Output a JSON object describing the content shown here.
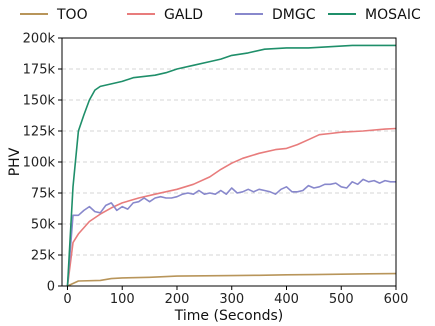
{
  "chart_data": {
    "type": "line",
    "title": "",
    "xlabel": "Time (Seconds)",
    "ylabel": "PHV",
    "xlim": [
      -10,
      600
    ],
    "ylim": [
      0,
      200000
    ],
    "xticks": [
      0,
      100,
      200,
      300,
      400,
      500,
      600
    ],
    "xtick_labels": [
      "0",
      "100",
      "200",
      "300",
      "400",
      "500",
      "600"
    ],
    "yticks": [
      0,
      25000,
      50000,
      75000,
      100000,
      125000,
      150000,
      175000,
      200000
    ],
    "ytick_labels": [
      "0",
      "25k",
      "50k",
      "75k",
      "100k",
      "125k",
      "150k",
      "175k",
      "200k"
    ],
    "grid": "horizontal dashed",
    "legend": "top",
    "series": [
      {
        "name": "TOO",
        "color": "#b8955a",
        "x": [
          0,
          20,
          60,
          80,
          100,
          150,
          200,
          250,
          300,
          350,
          400,
          450,
          500,
          550,
          600
        ],
        "y": [
          0,
          4000,
          4500,
          6000,
          6500,
          7000,
          8000,
          8200,
          8400,
          8600,
          9000,
          9200,
          9500,
          9800,
          10000
        ]
      },
      {
        "name": "GALD",
        "color": "#e87c7c",
        "x": [
          0,
          10,
          20,
          40,
          60,
          80,
          100,
          130,
          160,
          200,
          230,
          260,
          280,
          300,
          320,
          350,
          380,
          400,
          420,
          440,
          460,
          480,
          500,
          540,
          580,
          600
        ],
        "y": [
          0,
          35000,
          42000,
          52000,
          58000,
          63000,
          67000,
          71000,
          74000,
          78000,
          82000,
          88000,
          94000,
          99000,
          103000,
          107000,
          110000,
          111000,
          114000,
          118000,
          122000,
          123000,
          124000,
          125000,
          126500,
          127000
        ]
      },
      {
        "name": "DMGC",
        "color": "#8888cc",
        "x": [
          0,
          10,
          20,
          30,
          40,
          50,
          60,
          70,
          80,
          90,
          100,
          110,
          120,
          130,
          140,
          150,
          160,
          170,
          180,
          190,
          200,
          210,
          220,
          230,
          240,
          250,
          260,
          270,
          280,
          290,
          300,
          310,
          320,
          330,
          340,
          350,
          360,
          370,
          380,
          390,
          400,
          410,
          420,
          430,
          440,
          450,
          460,
          470,
          480,
          490,
          500,
          510,
          520,
          530,
          540,
          550,
          560,
          570,
          580,
          590,
          600
        ],
        "y": [
          0,
          57000,
          57000,
          61000,
          64000,
          60000,
          59000,
          65000,
          67000,
          61000,
          64000,
          62000,
          67000,
          68000,
          71000,
          68000,
          71000,
          72000,
          71000,
          71000,
          72000,
          74000,
          75000,
          74000,
          77000,
          74000,
          75000,
          74000,
          77000,
          74000,
          79000,
          75000,
          76000,
          78000,
          76000,
          78000,
          77000,
          76000,
          74000,
          78000,
          80000,
          76000,
          76000,
          77000,
          81000,
          79000,
          80000,
          82000,
          82000,
          83000,
          80000,
          79000,
          84000,
          82000,
          86000,
          84000,
          85000,
          83000,
          85000,
          84000,
          84000
        ]
      },
      {
        "name": "MOSAIC",
        "color": "#1f8f6a",
        "x": [
          0,
          10,
          20,
          30,
          40,
          50,
          60,
          80,
          100,
          120,
          140,
          160,
          180,
          200,
          230,
          260,
          280,
          300,
          330,
          360,
          400,
          440,
          480,
          520,
          560,
          600
        ],
        "y": [
          0,
          80000,
          125000,
          138000,
          150000,
          158000,
          161000,
          163000,
          165000,
          168000,
          169000,
          170000,
          172000,
          175000,
          178000,
          181000,
          183000,
          186000,
          188000,
          191000,
          192000,
          192000,
          193000,
          194000,
          194000,
          194000
        ]
      }
    ]
  }
}
